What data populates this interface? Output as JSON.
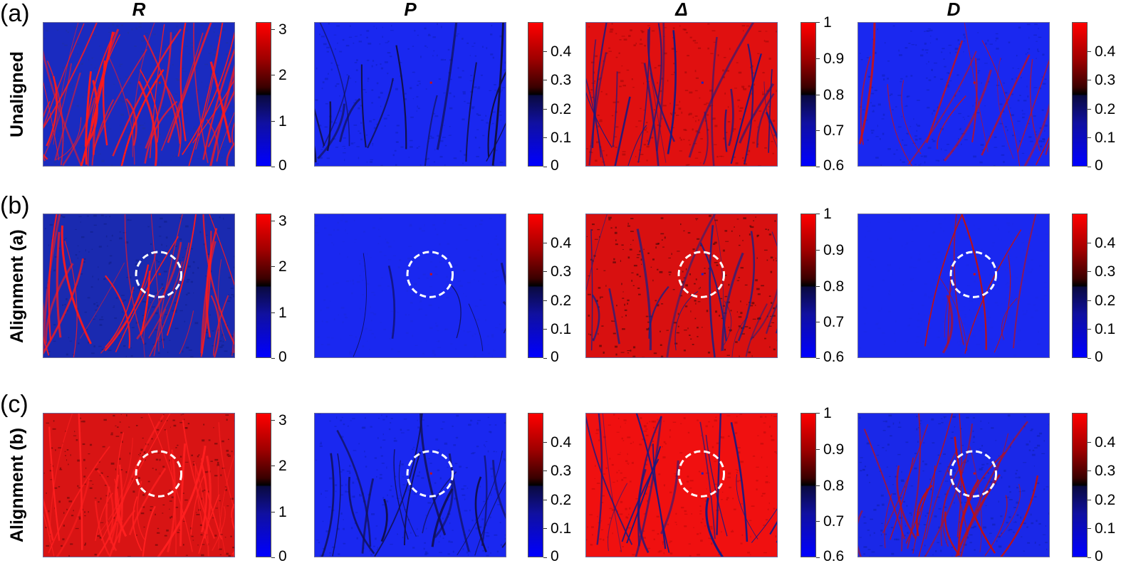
{
  "panel_letters": [
    "(a)",
    "(b)",
    "(c)"
  ],
  "column_titles": [
    "R",
    "P",
    "Δ",
    "D"
  ],
  "row_labels": [
    "Unaligned",
    "Alignment (a)",
    "Alignment (b)"
  ],
  "colorbars": [
    {
      "ticks": [
        "3",
        "2",
        "1",
        "0"
      ],
      "tick_values": [
        3,
        2,
        1,
        0
      ],
      "min": 0,
      "max": 3.15
    },
    {
      "ticks": [
        "0.4",
        "0.3",
        "0.2",
        "0.1",
        "0"
      ],
      "tick_values": [
        0.4,
        0.3,
        0.2,
        0.1,
        0
      ],
      "min": 0,
      "max": 0.5
    },
    {
      "ticks": [
        "1",
        "0.9",
        "0.8",
        "0.7",
        "0.6"
      ],
      "tick_values": [
        1,
        0.9,
        0.8,
        0.7,
        0.6
      ],
      "min": 0.6,
      "max": 1.0
    },
    {
      "ticks": [
        "0.4",
        "0.3",
        "0.2",
        "0.1",
        "0"
      ],
      "tick_values": [
        0.4,
        0.3,
        0.2,
        0.1,
        0
      ],
      "min": 0,
      "max": 0.5
    }
  ],
  "colormap": {
    "low": "#0000ff",
    "mid_low": "#0a0a40",
    "mid_high": "#3a0000",
    "high": "#ff0000"
  },
  "maps": [
    [
      {
        "base": "#1a2bc0",
        "texture": "#2030a0",
        "fiber": "#ff1a1a",
        "fiber_count": 60,
        "circle": false
      },
      {
        "base": "#1a28f0",
        "texture": "#1020c0",
        "fiber": "#101040",
        "fiber_count": 18,
        "circle": false
      },
      {
        "base": "#e01010",
        "texture": "#a00808",
        "fiber": "#1a1a80",
        "fiber_count": 30,
        "circle": false
      },
      {
        "base": "#1a28f0",
        "texture": "#1020c0",
        "fiber": "#cc1010",
        "fiber_count": 22,
        "circle": false
      }
    ],
    [
      {
        "base": "#1a2ab0",
        "texture": "#10208a",
        "fiber": "#ff1a1a",
        "fiber_count": 40,
        "circle": true
      },
      {
        "base": "#1a28f0",
        "texture": "#1a28e0",
        "fiber": "#101060",
        "fiber_count": 8,
        "circle": true
      },
      {
        "base": "#d81010",
        "texture": "#400808",
        "fiber": "#202080",
        "fiber_count": 26,
        "circle": true
      },
      {
        "base": "#1a28f0",
        "texture": "#1a28e8",
        "fiber": "#c01010",
        "fiber_count": 12,
        "circle": true
      }
    ],
    [
      {
        "base": "#d81414",
        "texture": "#600808",
        "fiber": "#ff2020",
        "fiber_count": 50,
        "circle": true
      },
      {
        "base": "#1a28f0",
        "texture": "#1020c0",
        "fiber": "#101050",
        "fiber_count": 24,
        "circle": true
      },
      {
        "base": "#f01010",
        "texture": "#c00a0a",
        "fiber": "#1a1a80",
        "fiber_count": 24,
        "circle": true
      },
      {
        "base": "#1a28e8",
        "texture": "#1020b0",
        "fiber": "#c01010",
        "fiber_count": 30,
        "circle": true
      }
    ]
  ]
}
